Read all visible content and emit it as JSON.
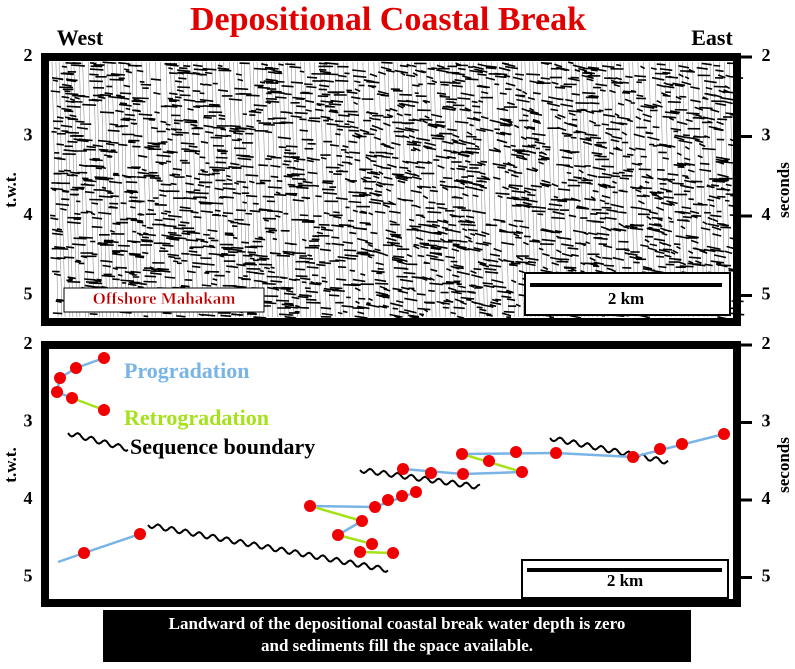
{
  "title": "Depositional Coastal Break",
  "directions": {
    "west": "West",
    "east": "East"
  },
  "panels": [
    {
      "ticks": [
        "2",
        "3",
        "4",
        "5"
      ],
      "left_label": "t.w.t.",
      "right_label": "seconds",
      "tag": "Offshore Mahakam",
      "scale": "2 km"
    },
    {
      "ticks": [
        "2",
        "3",
        "4",
        "5"
      ],
      "left_label": "t.w.t.",
      "right_label": "seconds",
      "scale": "2 km",
      "legend": {
        "progradation": "Progradation",
        "retrogradation": "Retrogradation",
        "sequence_boundary": "Sequence boundary"
      }
    }
  ],
  "caption": [
    "Landward of the depositional coastal break water depth is zero",
    "and sediments fill the space available."
  ]
}
